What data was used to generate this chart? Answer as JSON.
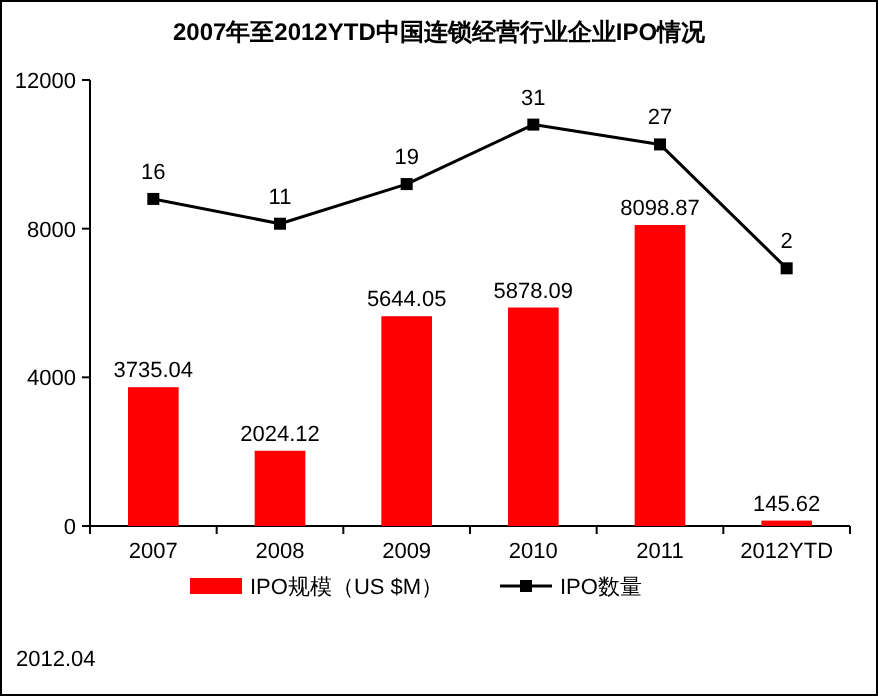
{
  "chart_data": {
    "type": "bar",
    "title": "2007年至2012YTD中国连锁经营行业企业IPO情况",
    "categories": [
      "2007",
      "2008",
      "2009",
      "2010",
      "2011",
      "2012YTD"
    ],
    "series": [
      {
        "name": "IPO规模（US $M）",
        "color": "#ff0000",
        "values": [
          3735.04,
          2024.12,
          5644.05,
          5878.09,
          8098.87,
          145.62
        ]
      },
      {
        "name": "IPO数量",
        "type": "line",
        "axis": "y2",
        "color": "#000000",
        "marker": "square",
        "values": [
          16,
          11,
          19,
          31,
          27,
          2
        ]
      }
    ],
    "ylim": [
      0,
      12000
    ],
    "yticks": [
      0,
      4000,
      8000,
      12000
    ],
    "y2lim": [
      -50,
      40
    ],
    "data_labels": true,
    "grid": false,
    "legend": "bottom",
    "tick_labels": "xy",
    "annotations": [
      "2012.04"
    ]
  }
}
